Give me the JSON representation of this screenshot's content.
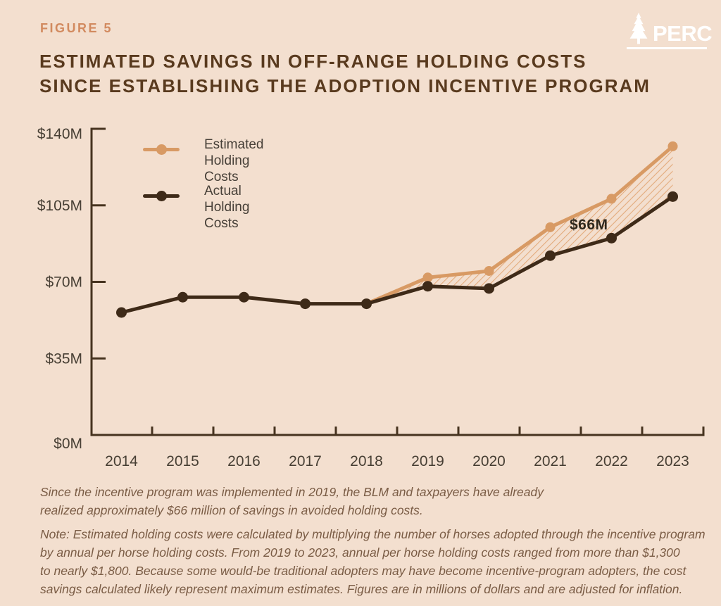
{
  "figure_label": "FIGURE 5",
  "title": "ESTIMATED SAVINGS IN OFF-RANGE HOLDING COSTS\nSINCE ESTABLISHING THE ADOPTION INCENTIVE PROGRAM",
  "logo": {
    "name": "PERC",
    "icon": "pine-tree-icon",
    "color": "#ffffff"
  },
  "legend": {
    "items": [
      {
        "label": "Estimated\nHolding Costs",
        "series_index": 0
      },
      {
        "label": "Actual\nHolding Costs",
        "series_index": 1
      }
    ]
  },
  "chart_data": {
    "type": "line",
    "categories": [
      "2014",
      "2015",
      "2016",
      "2017",
      "2018",
      "2019",
      "2020",
      "2021",
      "2022",
      "2023"
    ],
    "series": [
      {
        "name": "Estimated Holding Costs",
        "color": "#d89a64",
        "values": [
          null,
          null,
          null,
          null,
          60,
          72,
          75,
          95,
          108,
          132
        ]
      },
      {
        "name": "Actual Holding Costs",
        "color": "#3e2a18",
        "values": [
          56,
          63,
          63,
          60,
          60,
          68,
          67,
          82,
          90,
          109
        ]
      }
    ],
    "ylim": [
      0,
      140
    ],
    "y_ticks": [
      {
        "value": 0,
        "label": "$0M"
      },
      {
        "value": 35,
        "label": "$35M"
      },
      {
        "value": 70,
        "label": "$70M"
      },
      {
        "value": 105,
        "label": "$105M"
      },
      {
        "value": 140,
        "label": "$140M"
      }
    ],
    "grid": false,
    "legend_position": "top-left-inside",
    "annotation": {
      "text": "$66M",
      "meaning": "cumulative savings between estimated and actual holding costs 2019-2023"
    },
    "savings_area": {
      "from_year": "2018",
      "to_year": "2023",
      "style": "diagonal-hatch",
      "hatch_color": "#e3ab7d"
    },
    "axis_color": "#46331f",
    "tick_label_color": "#473f34"
  },
  "caption": "Since the incentive program was implemented in 2019, the BLM and taxpayers have already\nrealized approximately $66 million of savings in avoided holding costs.",
  "note": "Note: Estimated holding costs were calculated by multiplying the number of horses adopted through the incentive program\nby annual per horse holding costs. From 2019 to 2023, annual per horse holding costs ranged from more than $1,300\nto nearly $1,800. Because some would-be traditional adopters may have become incentive-program adopters, the cost\nsavings calculated likely represent maximum estimates. Figures are in millions of dollars and are adjusted for inflation."
}
